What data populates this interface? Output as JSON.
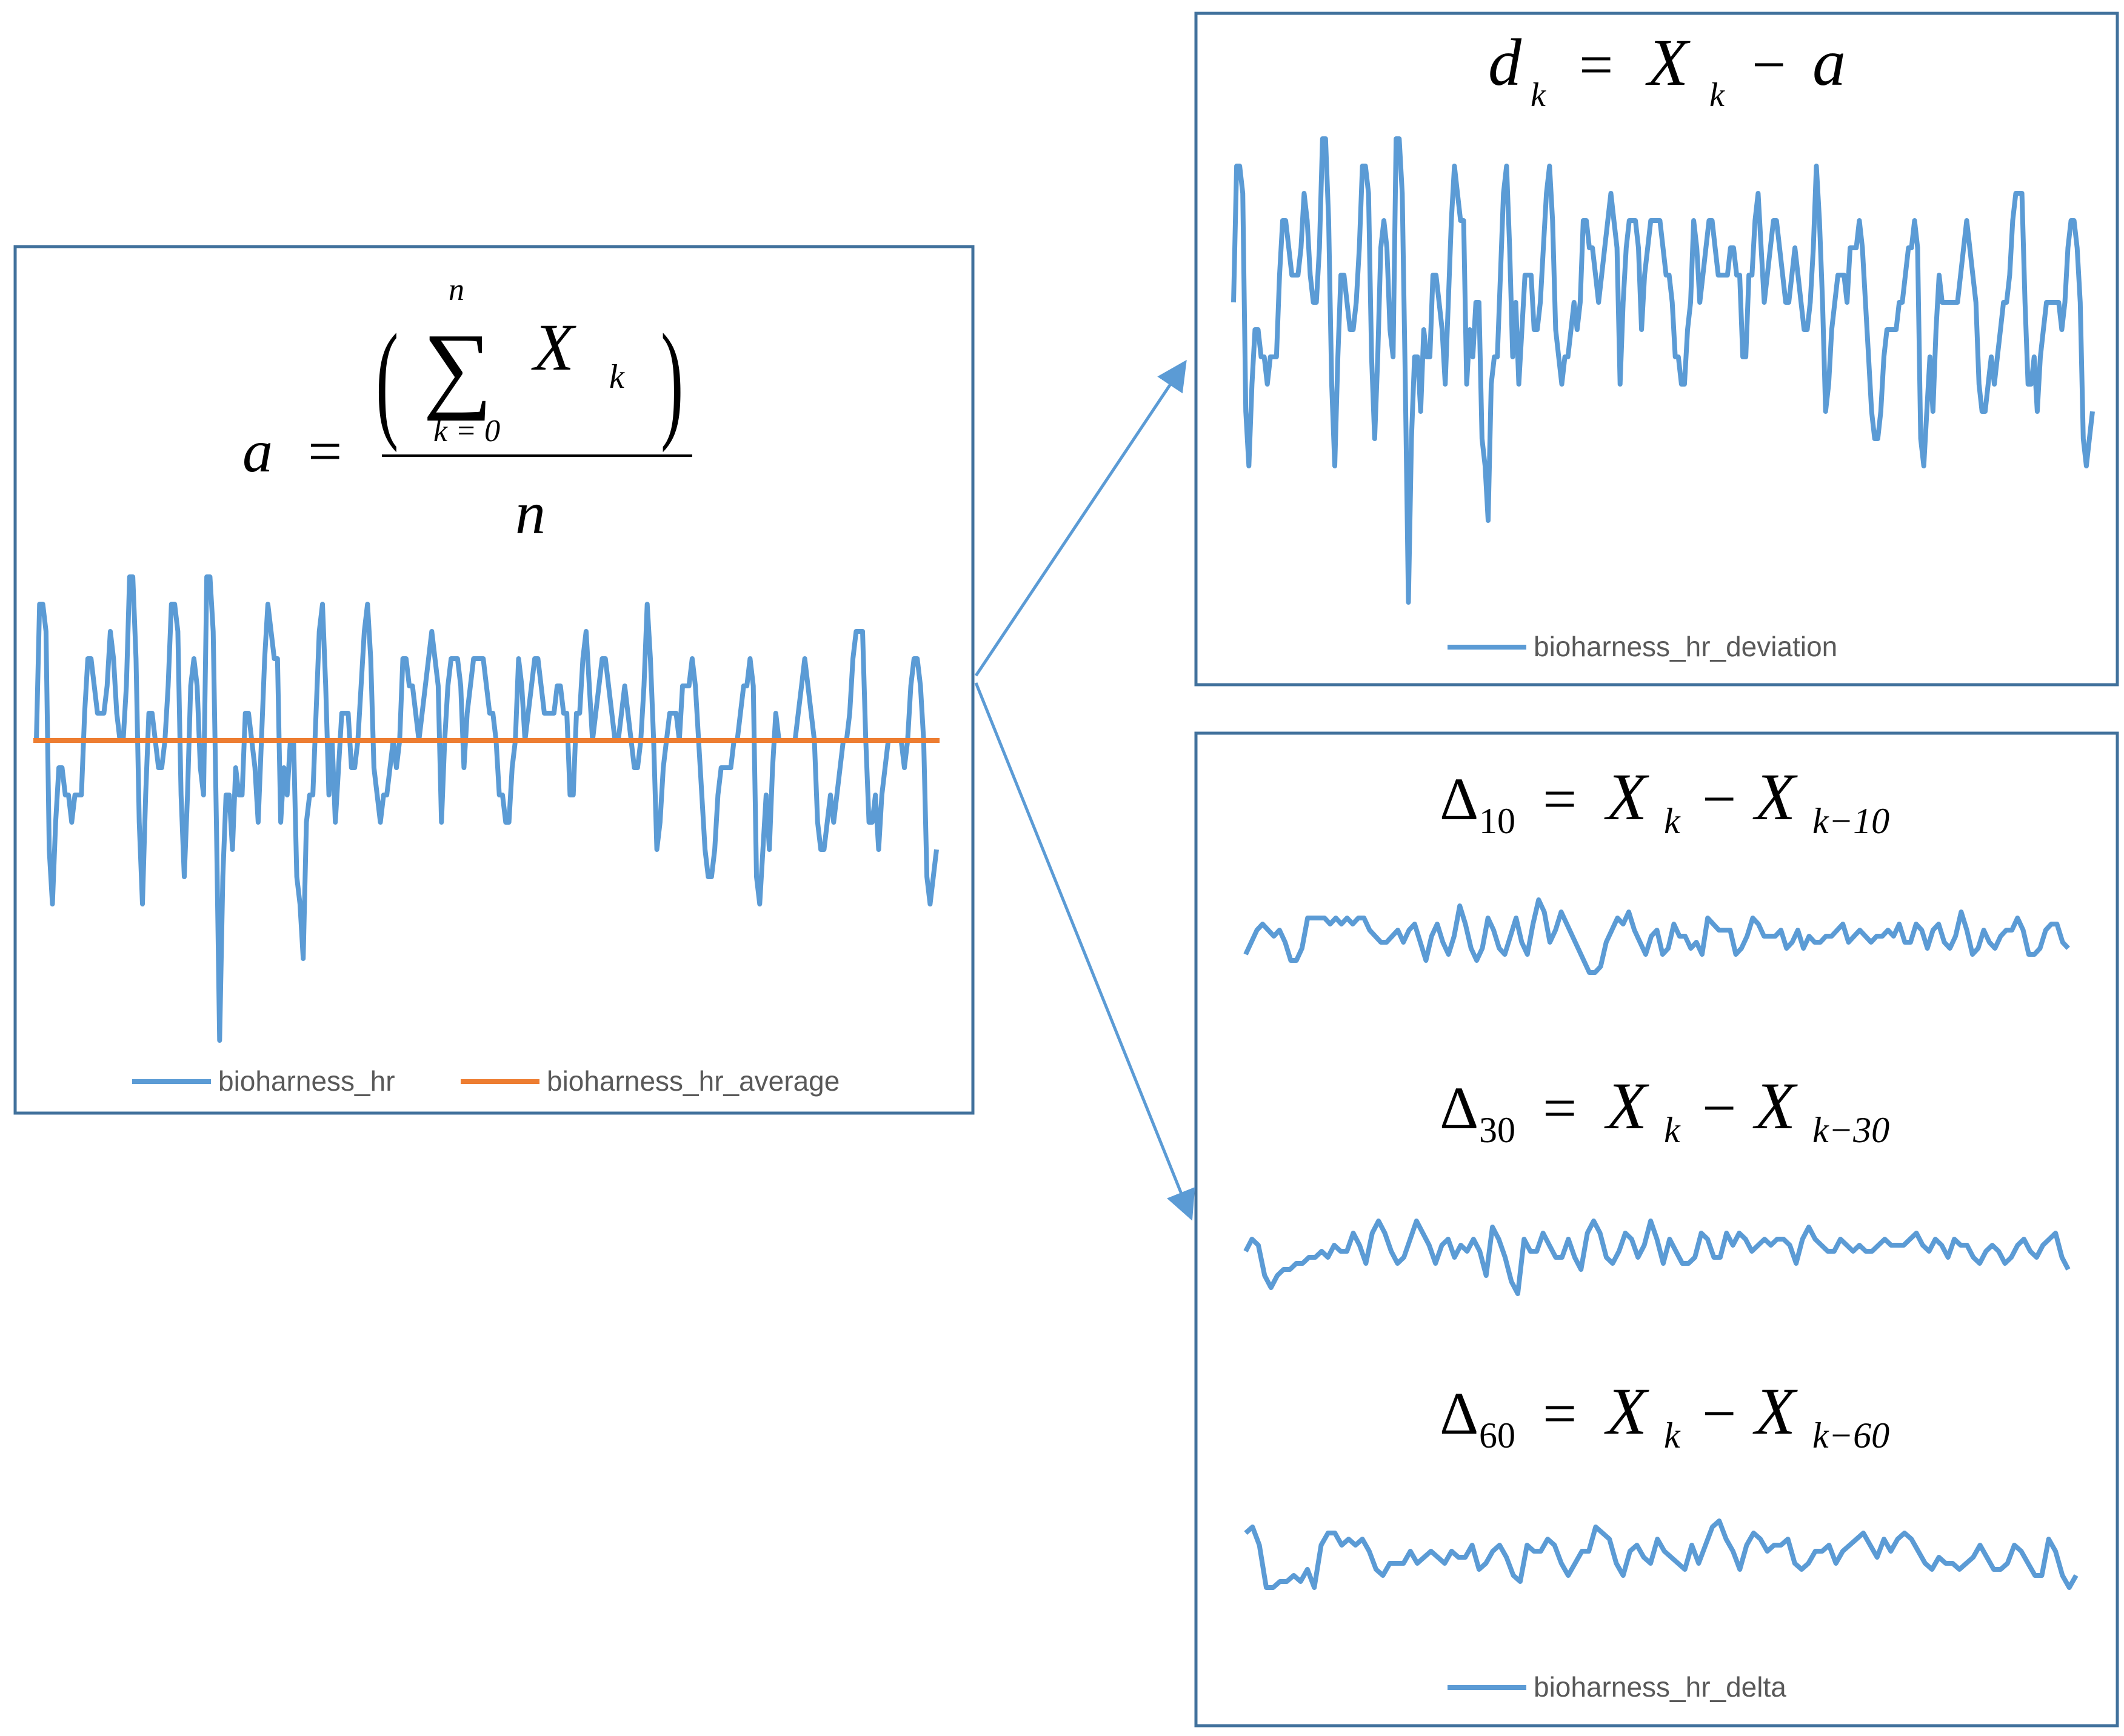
{
  "colors": {
    "series": "#5b9bd5",
    "average": "#ed7d31",
    "panel_border": "#41719c",
    "arrow": "#5b9bd5",
    "legend_text": "#595959"
  },
  "formulas": {
    "average": {
      "lhs": "a",
      "eq": "=",
      "sum_symbol": "∑",
      "sum_upper": "n",
      "sum_lower": "k = 0",
      "term": "X",
      "term_sub": "k",
      "denominator": "n",
      "paren_left": "(",
      "paren_right": ")"
    },
    "deviation": {
      "lhs": "d",
      "lhs_sub": "k",
      "eq": "=",
      "term": "X",
      "term_sub": "k",
      "op": "−",
      "rhs": "a"
    },
    "delta10": {
      "lhs": "Δ",
      "lhs_sub": "10",
      "eq": "=",
      "t1": "X",
      "t1_sub": "k",
      "op": "−",
      "t2": "X",
      "t2_sub": "k−10"
    },
    "delta30": {
      "lhs": "Δ",
      "lhs_sub": "30",
      "eq": "=",
      "t1": "X",
      "t1_sub": "k",
      "op": "−",
      "t2": "X",
      "t2_sub": "k−30"
    },
    "delta60": {
      "lhs": "Δ",
      "lhs_sub": "60",
      "eq": "=",
      "t1": "X",
      "t1_sub": "k",
      "op": "−",
      "t2": "X",
      "t2_sub": "k−60"
    }
  },
  "chart_data": [
    {
      "type": "line",
      "xlabel": "",
      "ylabel": "",
      "grid": false,
      "legend": "bottom",
      "series": [
        {
          "name": "bioharness_hr",
          "values": [
            0,
            5,
            5,
            4,
            -4,
            -6,
            -3,
            -1,
            -1,
            -2,
            -2,
            -3,
            -2,
            -2,
            -2,
            1,
            3,
            3,
            2,
            1,
            1,
            1,
            2,
            4,
            3,
            1,
            0,
            0,
            2,
            6,
            6,
            3,
            -3,
            -6,
            -2,
            1,
            1,
            0,
            -1,
            -1,
            0,
            2,
            5,
            5,
            4,
            -2,
            -5,
            -2,
            2,
            3,
            2,
            -1,
            -2,
            6,
            6,
            4,
            -3,
            -11,
            -5,
            -2,
            -2,
            -4,
            -1,
            -2,
            -2,
            1,
            1,
            0,
            -1,
            -3,
            0,
            3,
            5,
            4,
            3,
            3,
            -3,
            -1,
            -2,
            0,
            0,
            -5,
            -6,
            -8,
            -3,
            -2,
            -2,
            1,
            4,
            5,
            2,
            -2,
            0,
            -3,
            -1,
            1,
            1,
            1,
            -1,
            -1,
            0,
            2,
            4,
            5,
            3,
            -1,
            -2,
            -3,
            -2,
            -2,
            -1,
            0,
            -1,
            0,
            3,
            3,
            2,
            2,
            1,
            0,
            1,
            2,
            3,
            4,
            3,
            2,
            -3,
            0,
            2,
            3,
            3,
            3,
            2,
            -1,
            1,
            2,
            3,
            3,
            3,
            3,
            2,
            1,
            1,
            0,
            -2,
            -2,
            -3,
            -3,
            -1,
            0,
            3,
            2,
            0,
            1,
            2,
            3,
            3,
            2,
            1,
            1,
            1,
            1,
            2,
            2,
            1,
            1,
            -2,
            -2,
            1,
            1,
            3,
            4,
            2,
            0,
            1,
            2,
            3,
            3,
            2,
            1,
            0,
            0,
            1,
            2,
            1,
            0,
            -1,
            -1,
            0,
            2,
            5,
            3,
            0,
            -4,
            -3,
            -1,
            0,
            1,
            1,
            1,
            0,
            2,
            2,
            2,
            3,
            2,
            0,
            -2,
            -4,
            -5,
            -5,
            -4,
            -2,
            -1,
            -1,
            -1,
            -1,
            0,
            0,
            1,
            2,
            2,
            3,
            2,
            -5,
            -6,
            -4,
            -2,
            -4,
            -1,
            1,
            0,
            0,
            0,
            0,
            0,
            0,
            1,
            2,
            3,
            2,
            1,
            0,
            -3,
            -4,
            -4,
            -3,
            -2,
            -3,
            -2,
            -1,
            0,
            0,
            1,
            3,
            4,
            4,
            4,
            0,
            -3,
            -3,
            -2,
            -4,
            -2,
            -1,
            0,
            0,
            0,
            0,
            0,
            -1,
            0,
            2,
            3,
            3,
            2,
            0,
            -5,
            -6,
            -5,
            -4
          ]
        },
        {
          "name": "bioharness_hr_average",
          "values": [
            0
          ]
        }
      ]
    },
    {
      "type": "line",
      "xlabel": "",
      "ylabel": "",
      "grid": false,
      "legend": "bottom",
      "series": [
        {
          "name": "bioharness_hr_deviation",
          "values": [
            0,
            5,
            5,
            4,
            -4,
            -6,
            -3,
            -1,
            -1,
            -2,
            -2,
            -3,
            -2,
            -2,
            -2,
            1,
            3,
            3,
            2,
            1,
            1,
            1,
            2,
            4,
            3,
            1,
            0,
            0,
            2,
            6,
            6,
            3,
            -3,
            -6,
            -2,
            1,
            1,
            0,
            -1,
            -1,
            0,
            2,
            5,
            5,
            4,
            -2,
            -5,
            -2,
            2,
            3,
            2,
            -1,
            -2,
            6,
            6,
            4,
            -3,
            -11,
            -5,
            -2,
            -2,
            -4,
            -1,
            -2,
            -2,
            1,
            1,
            0,
            -1,
            -3,
            0,
            3,
            5,
            4,
            3,
            3,
            -3,
            -1,
            -2,
            0,
            0,
            -5,
            -6,
            -8,
            -3,
            -2,
            -2,
            1,
            4,
            5,
            2,
            -2,
            0,
            -3,
            -1,
            1,
            1,
            1,
            -1,
            -1,
            0,
            2,
            4,
            5,
            3,
            -1,
            -2,
            -3,
            -2,
            -2,
            -1,
            0,
            -1,
            0,
            3,
            3,
            2,
            2,
            1,
            0,
            1,
            2,
            3,
            4,
            3,
            2,
            -3,
            0,
            2,
            3,
            3,
            3,
            2,
            -1,
            1,
            2,
            3,
            3,
            3,
            3,
            2,
            1,
            1,
            0,
            -2,
            -2,
            -3,
            -3,
            -1,
            0,
            3,
            2,
            0,
            1,
            2,
            3,
            3,
            2,
            1,
            1,
            1,
            1,
            2,
            2,
            1,
            1,
            -2,
            -2,
            1,
            1,
            3,
            4,
            2,
            0,
            1,
            2,
            3,
            3,
            2,
            1,
            0,
            0,
            1,
            2,
            1,
            0,
            -1,
            -1,
            0,
            2,
            5,
            3,
            0,
            -4,
            -3,
            -1,
            0,
            1,
            1,
            1,
            0,
            2,
            2,
            2,
            3,
            2,
            0,
            -2,
            -4,
            -5,
            -5,
            -4,
            -2,
            -1,
            -1,
            -1,
            -1,
            0,
            0,
            1,
            2,
            2,
            3,
            2,
            -5,
            -6,
            -4,
            -2,
            -4,
            -1,
            1,
            0,
            0,
            0,
            0,
            0,
            0,
            1,
            2,
            3,
            2,
            1,
            0,
            -3,
            -4,
            -4,
            -3,
            -2,
            -3,
            -2,
            -1,
            0,
            0,
            1,
            3,
            4,
            4,
            4,
            0,
            -3,
            -3,
            -2,
            -4,
            -2,
            -1,
            0,
            0,
            0,
            0,
            0,
            -1,
            0,
            2,
            3,
            3,
            2,
            0,
            -5,
            -6,
            -5,
            -4
          ]
        }
      ]
    },
    {
      "type": "line",
      "xlabel": "",
      "ylabel": "",
      "grid": false,
      "legend": "bottom",
      "series": [
        {
          "name": "bioharness_hr_delta",
          "values": [
            -1.0,
            0.0,
            1.0,
            1.5,
            1.0,
            0.5,
            1.0,
            0.0,
            -1.5,
            -1.5,
            -0.5,
            2.0,
            2.0,
            2.0,
            2.0,
            1.5,
            2.0,
            1.5,
            2.0,
            1.5,
            2.0,
            2.0,
            1.0,
            0.5,
            0.0,
            0.0,
            0.5,
            1.0,
            0.0,
            1.0,
            1.5,
            0.0,
            -1.5,
            0.5,
            1.5,
            0.0,
            -1.0,
            0.5,
            3.0,
            1.5,
            -0.5,
            -1.5,
            -0.5,
            2.0,
            1.0,
            -0.5,
            -1.0,
            0.5,
            2.0,
            0.0,
            -1.0,
            1.5,
            3.5,
            2.5,
            0.0,
            1.0,
            2.5,
            1.5,
            0.5,
            -0.5,
            -1.5,
            -2.5,
            -2.5,
            -2.0,
            0.0,
            1.0,
            2.0,
            1.5,
            2.5,
            1.0,
            0.0,
            -1.0,
            0.5,
            1.0,
            -1.0,
            -0.5,
            1.5,
            0.5,
            0.5,
            -0.5,
            0.0,
            -1.0,
            2.0,
            1.5,
            1.0,
            1.0,
            1.0,
            -1.0,
            -0.5,
            0.5,
            2.0,
            1.5,
            0.5,
            0.5,
            0.5,
            1.0,
            -0.5,
            0.0,
            1.0,
            -0.5,
            0.5,
            0.0,
            0.0,
            0.5,
            0.5,
            1.0,
            1.5,
            0.0,
            0.5,
            1.0,
            0.5,
            0.0,
            0.5,
            0.5,
            1.0,
            0.5,
            1.5,
            0.0,
            0.0,
            1.5,
            1.0,
            -0.5,
            1.0,
            1.5,
            0.0,
            -0.5,
            0.5,
            2.5,
            1.0,
            -1.0,
            -0.5,
            1.0,
            0.0,
            -0.5,
            0.5,
            1.0,
            1.0,
            2.0,
            1.0,
            -1.0,
            -1.0,
            -0.5,
            1.0,
            1.5,
            1.5,
            0.0,
            -0.5
          ]
        }
      ]
    },
    {
      "type": "line",
      "xlabel": "",
      "ylabel": "",
      "grid": false,
      "legend": "none",
      "series": [
        {
          "name": "bioharness_hr_delta",
          "values": [
            0.5,
            1.5,
            1.0,
            -1.5,
            -2.5,
            -1.5,
            -1.0,
            -1.0,
            -0.5,
            -0.5,
            0.0,
            0.0,
            0.5,
            0.0,
            1.0,
            0.5,
            0.5,
            2.0,
            1.0,
            -0.5,
            2.0,
            3.0,
            2.0,
            0.5,
            -0.5,
            0.0,
            1.5,
            3.0,
            2.0,
            1.0,
            -0.5,
            1.0,
            1.5,
            0.0,
            1.0,
            0.5,
            1.5,
            0.5,
            -1.5,
            2.5,
            1.5,
            0.0,
            -2.0,
            -3.0,
            1.5,
            0.5,
            0.5,
            2.0,
            1.0,
            0.0,
            0.0,
            1.5,
            0.0,
            -1.0,
            2.0,
            3.0,
            2.0,
            0.0,
            -0.5,
            0.5,
            2.0,
            1.5,
            0.0,
            1.0,
            3.0,
            1.5,
            -0.5,
            1.5,
            0.5,
            -0.5,
            -0.5,
            0.0,
            2.0,
            1.5,
            0.0,
            0.0,
            2.0,
            1.0,
            2.0,
            1.5,
            0.5,
            1.0,
            1.5,
            1.0,
            1.5,
            1.5,
            1.0,
            -0.5,
            1.5,
            2.5,
            1.5,
            1.0,
            0.5,
            0.5,
            1.5,
            1.0,
            0.5,
            1.0,
            0.5,
            0.5,
            1.0,
            1.5,
            1.0,
            1.0,
            1.0,
            1.5,
            2.0,
            1.0,
            0.5,
            1.5,
            1.0,
            0.0,
            1.5,
            1.0,
            1.0,
            0.0,
            -0.5,
            0.5,
            1.0,
            0.5,
            -0.5,
            0.0,
            1.0,
            1.5,
            0.5,
            0.0,
            1.0,
            1.5,
            2.0,
            0.0,
            -1.0
          ]
        }
      ]
    },
    {
      "type": "line",
      "xlabel": "",
      "ylabel": "",
      "grid": false,
      "legend": "none",
      "series": [
        {
          "name": "bioharness_hr_delta",
          "values": [
            2.0,
            2.5,
            1.0,
            -2.5,
            -2.5,
            -2.0,
            -2.0,
            -1.5,
            -2.0,
            -1.0,
            -2.5,
            1.0,
            2.0,
            2.0,
            1.0,
            1.5,
            1.0,
            1.5,
            0.5,
            -1.0,
            -1.5,
            -0.5,
            -0.5,
            -0.5,
            0.5,
            -0.5,
            0.0,
            0.5,
            0.0,
            -0.5,
            0.5,
            0.0,
            0.0,
            1.0,
            -1.0,
            -0.5,
            0.5,
            1.0,
            0.0,
            -1.5,
            -2.0,
            1.0,
            0.5,
            0.5,
            1.5,
            1.0,
            -0.5,
            -1.5,
            -0.5,
            0.5,
            0.5,
            2.5,
            2.0,
            1.5,
            -0.5,
            -1.5,
            0.5,
            1.0,
            0.0,
            -0.5,
            1.5,
            0.5,
            0.0,
            -0.5,
            -1.0,
            1.0,
            -0.5,
            1.0,
            2.5,
            3.0,
            1.5,
            0.5,
            -1.0,
            1.0,
            2.0,
            1.5,
            0.5,
            1.0,
            1.0,
            1.5,
            -0.5,
            -1.0,
            -0.5,
            0.5,
            0.5,
            1.0,
            -0.5,
            0.5,
            1.0,
            1.5,
            2.0,
            1.0,
            0.0,
            1.5,
            0.5,
            1.5,
            2.0,
            1.5,
            0.5,
            -0.5,
            -1.0,
            0.0,
            -0.5,
            -0.5,
            -1.0,
            -0.5,
            0.0,
            1.0,
            0.0,
            -1.0,
            -1.0,
            -0.5,
            1.0,
            0.5,
            -0.5,
            -1.5,
            -1.5,
            1.5,
            0.5,
            -1.5,
            -2.5,
            -1.5
          ]
        }
      ]
    }
  ],
  "legends": {
    "left": {
      "series1": "bioharness_hr",
      "series2": "bioharness_hr_average"
    },
    "deviation": {
      "series1": "bioharness_hr_deviation"
    },
    "delta": {
      "series1": "bioharness_hr_delta"
    }
  }
}
